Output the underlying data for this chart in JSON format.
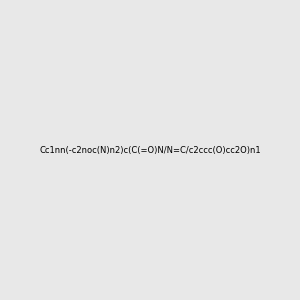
{
  "smiles": "Cc1nn(-c2noc(N)n2)c(C(=O)N/N=C/c2ccc(O)cc2O)n1",
  "img_size": [
    300,
    300
  ],
  "bg_color": "#e8e8e8",
  "title": "",
  "bond_color_N": "#0000CD",
  "bond_color_O": "#CC0000",
  "bond_color_C": "#000000"
}
